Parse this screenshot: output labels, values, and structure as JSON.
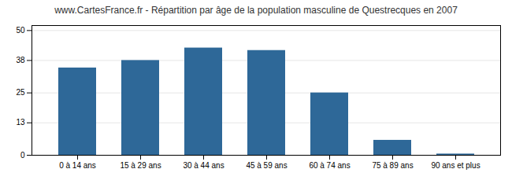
{
  "chart_data": {
    "type": "bar",
    "title": "www.CartesFrance.fr - Répartition par âge de la population masculine de Questrecques en 2007",
    "categories": [
      "0 à 14 ans",
      "15 à 29 ans",
      "30 à 44 ans",
      "45 à 59 ans",
      "60 à 74 ans",
      "75 à 89 ans",
      "90 ans et plus"
    ],
    "values": [
      35,
      38,
      43,
      42,
      25,
      6,
      0.5
    ],
    "color": "#2e6898",
    "ylim": [
      0,
      52
    ],
    "yticks": [
      0,
      13,
      25,
      38,
      50
    ],
    "grid": true
  }
}
